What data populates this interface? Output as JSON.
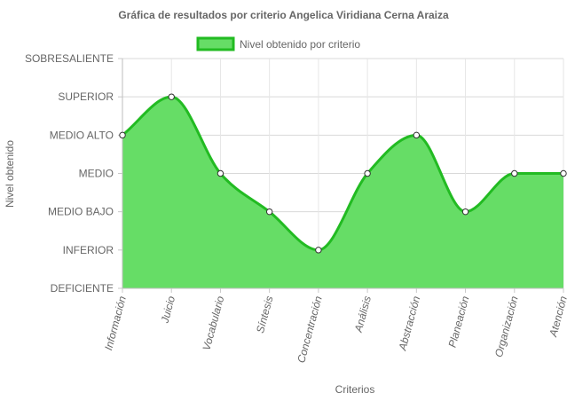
{
  "chart_data": {
    "type": "area",
    "title": "Gráfica de resultados por criterio Angelica Viridiana Cerna Araiza",
    "xlabel": "Criterios",
    "ylabel": "Nivel obtenido",
    "categories": [
      "Información",
      "Juicio",
      "Vocabulario",
      "Síntesis",
      "Concentración",
      "Análisis",
      "Abstracción",
      "Planeación",
      "Organización",
      "Atención"
    ],
    "y_levels": [
      "DEFICIENTE",
      "INFERIOR",
      "MEDIO BAJO",
      "MEDIO",
      "MEDIO ALTO",
      "SUPERIOR",
      "SOBRESALIENTE"
    ],
    "ylim": [
      0,
      6
    ],
    "series": [
      {
        "name": "Nivel obtenido por criterio",
        "values": [
          4,
          5,
          3,
          2,
          1,
          3,
          4,
          2,
          3,
          3
        ],
        "fill_color": "#66dd66",
        "line_color": "#22bb22"
      }
    ],
    "legend_position": "top",
    "grid": true
  }
}
